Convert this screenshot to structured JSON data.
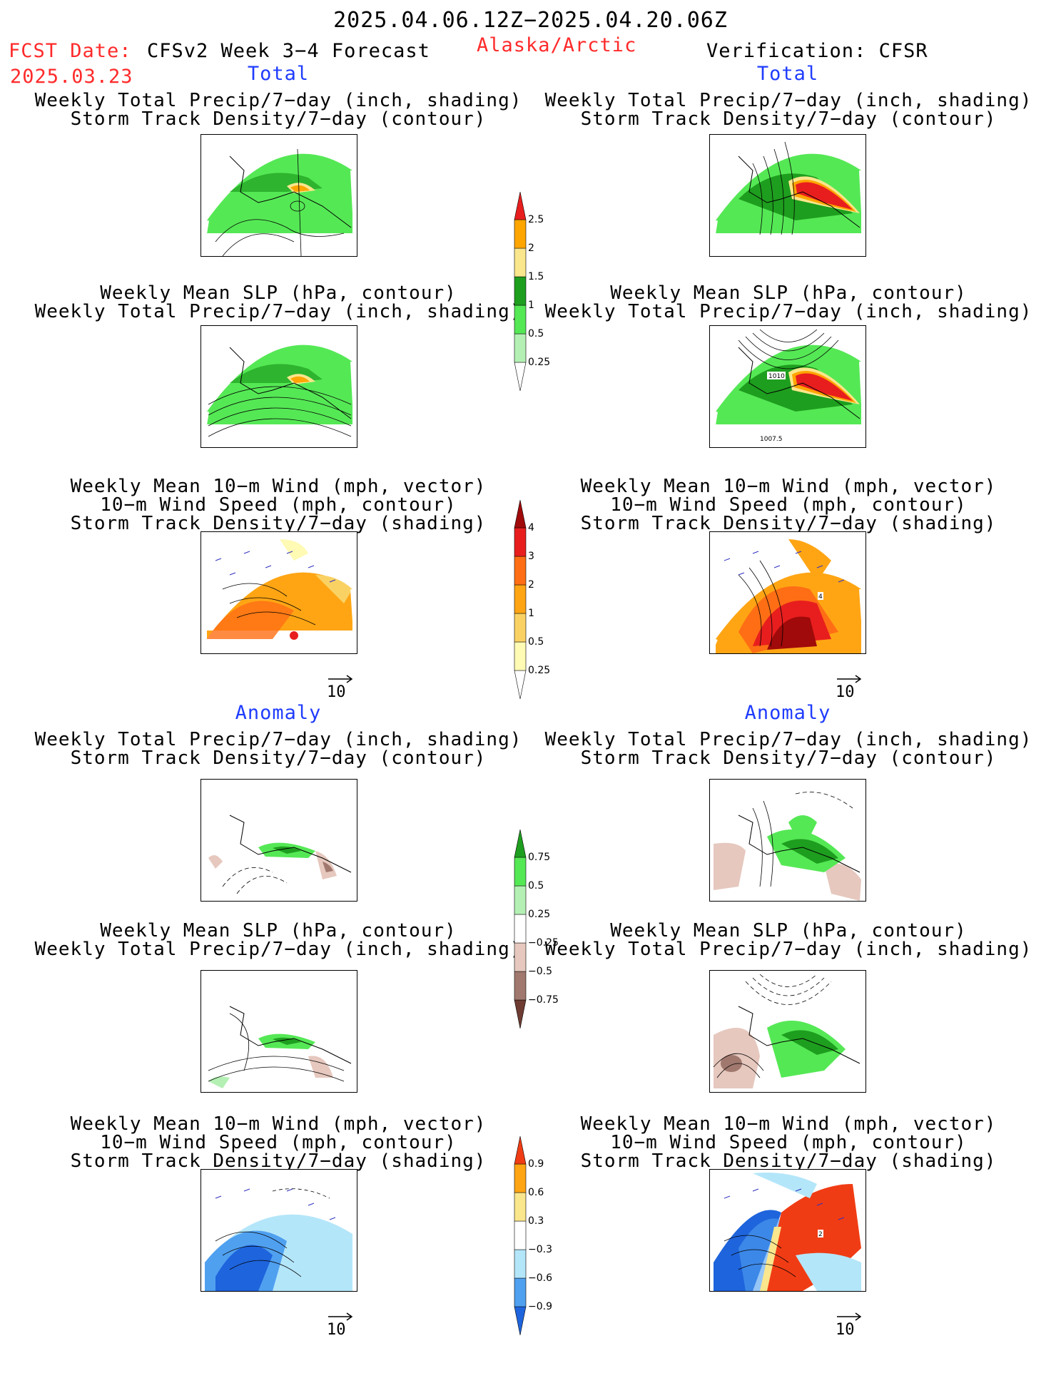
{
  "header": {
    "date_range": "2025.04.06.12Z−2025.04.20.06Z",
    "fcst_label": "FCST Date:",
    "fcst_date": "2025.03.23",
    "product": "CFSv2 Week 3−4 Forecast",
    "region": "Alaska/Arctic",
    "verification": "Verification: CFSR"
  },
  "sections": {
    "total_left": "Total",
    "total_right": "Total",
    "anomaly_left": "Anomaly",
    "anomaly_right": "Anomaly"
  },
  "titles": {
    "precip_storm_1": "Weekly Total Precip/7−day (inch, shading)",
    "precip_storm_2": "Storm Track Density/7−day (contour)",
    "slp_precip_1": "Weekly Mean SLP (hPa, contour)",
    "slp_precip_2": "Weekly Total Precip/7−day (inch, shading)",
    "wind_1": "Weekly Mean 10−m Wind (mph, vector)",
    "wind_2": "10−m Wind Speed (mph, contour)",
    "wind_3": "Storm Track Density/7−day (shading)"
  },
  "panel_labels": {
    "slp_obs_1": "1010",
    "slp_obs_2": "1007.5",
    "wind_obs_total": "4",
    "wind_obs_anom": "2"
  },
  "vector_reference": "10",
  "colorbars": {
    "precip_total": {
      "colors": [
        "#ffffff",
        "#b4f0b4",
        "#55e855",
        "#1e9e1e",
        "#fae68c",
        "#ffa500",
        "#e81e1e"
      ],
      "labels": [
        "0.25",
        "0.5",
        "1",
        "1.5",
        "2",
        "2.5"
      ]
    },
    "storm_total": {
      "colors": [
        "#ffffff",
        "#fffab4",
        "#fad264",
        "#ffa514",
        "#ff6e14",
        "#e81e1e",
        "#a00a0a"
      ],
      "labels": [
        "0.25",
        "0.5",
        "1",
        "2",
        "3",
        "4"
      ]
    },
    "precip_anom": {
      "colors": [
        "#6e3c32",
        "#a0786e",
        "#e6c8be",
        "#ffffff",
        "#b4f0b4",
        "#55e855",
        "#1e9e1e"
      ],
      "labels": [
        "−0.75",
        "−0.5",
        "−0.25",
        "0.25",
        "0.5",
        "0.75"
      ]
    },
    "storm_anom": {
      "colors": [
        "#1e64dc",
        "#50a0f0",
        "#b4e6fa",
        "#ffffff",
        "#fae68c",
        "#ffa514",
        "#f03c14"
      ],
      "labels": [
        "−0.9",
        "−0.6",
        "−0.3",
        "0.3",
        "0.6",
        "0.9"
      ]
    }
  }
}
